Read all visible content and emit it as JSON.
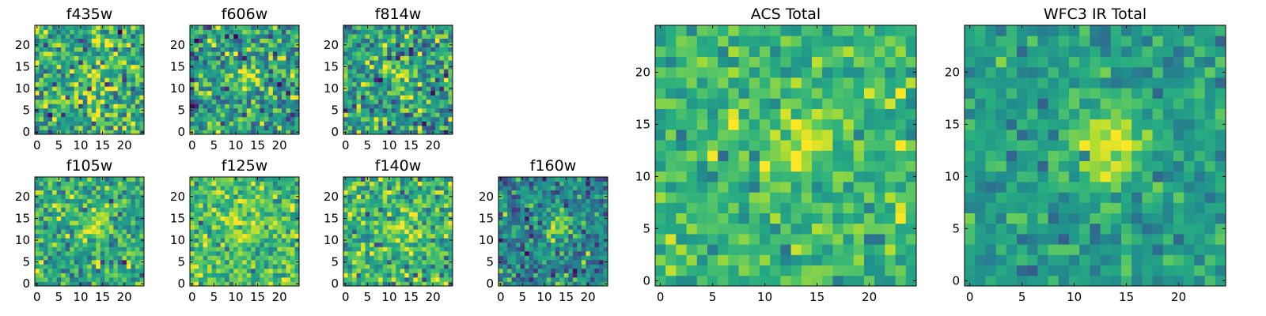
{
  "chart_data": [
    {
      "type": "heatmap",
      "title": "f435w",
      "xticks": [
        0,
        5,
        10,
        15,
        20
      ],
      "yticks": [
        0,
        5,
        10,
        15,
        20
      ],
      "xlim": [
        -0.5,
        24.5
      ],
      "ylim": [
        -0.5,
        24.5
      ],
      "grid": 25,
      "colormap": "viridis",
      "peak": [
        12,
        13
      ],
      "blob_width": 3.0,
      "blob_strength": 0.12,
      "noise_mean": 0.62,
      "noise_sd": 0.2,
      "seed": 11
    },
    {
      "type": "heatmap",
      "title": "f606w",
      "xticks": [
        0,
        5,
        10,
        15,
        20
      ],
      "yticks": [
        0,
        5,
        10,
        15,
        20
      ],
      "xlim": [
        -0.5,
        24.5
      ],
      "ylim": [
        -0.5,
        24.5
      ],
      "grid": 25,
      "colormap": "viridis",
      "peak": [
        13,
        13
      ],
      "blob_width": 1.6,
      "blob_strength": 0.35,
      "noise_mean": 0.55,
      "noise_sd": 0.2,
      "seed": 23
    },
    {
      "type": "heatmap",
      "title": "f814w",
      "xticks": [
        0,
        5,
        10,
        15,
        20
      ],
      "yticks": [
        0,
        5,
        10,
        15,
        20
      ],
      "xlim": [
        -0.5,
        24.5
      ],
      "ylim": [
        -0.5,
        24.5
      ],
      "grid": 25,
      "colormap": "viridis",
      "peak": [
        13,
        13
      ],
      "blob_width": 1.6,
      "blob_strength": 0.35,
      "noise_mean": 0.58,
      "noise_sd": 0.2,
      "seed": 37
    },
    {
      "type": "heatmap",
      "title": "f105w",
      "xticks": [
        0,
        5,
        10,
        15,
        20
      ],
      "yticks": [
        0,
        5,
        10,
        15,
        20
      ],
      "xlim": [
        -0.5,
        24.5
      ],
      "ylim": [
        -0.5,
        24.5
      ],
      "grid": 25,
      "colormap": "viridis",
      "peak": [
        13,
        14
      ],
      "blob_width": 2.5,
      "blob_strength": 0.3,
      "noise_mean": 0.62,
      "noise_sd": 0.16,
      "seed": 41
    },
    {
      "type": "heatmap",
      "title": "f125w",
      "xticks": [
        0,
        5,
        10,
        15,
        20
      ],
      "yticks": [
        0,
        5,
        10,
        15,
        20
      ],
      "xlim": [
        -0.5,
        24.5
      ],
      "ylim": [
        -0.5,
        24.5
      ],
      "grid": 25,
      "colormap": "viridis",
      "peak": [
        12,
        12
      ],
      "blob_width": 2.5,
      "blob_strength": 0.2,
      "noise_mean": 0.7,
      "noise_sd": 0.14,
      "seed": 53
    },
    {
      "type": "heatmap",
      "title": "f140w",
      "xticks": [
        0,
        5,
        10,
        15,
        20
      ],
      "yticks": [
        0,
        5,
        10,
        15,
        20
      ],
      "xlim": [
        -0.5,
        24.5
      ],
      "ylim": [
        -0.5,
        24.5
      ],
      "grid": 25,
      "colormap": "viridis",
      "peak": [
        13,
        12
      ],
      "blob_width": 2.5,
      "blob_strength": 0.22,
      "noise_mean": 0.66,
      "noise_sd": 0.17,
      "seed": 67
    },
    {
      "type": "heatmap",
      "title": "f160w",
      "xticks": [
        0,
        5,
        10,
        15,
        20
      ],
      "yticks": [
        0,
        5,
        10,
        15,
        20
      ],
      "xlim": [
        -0.5,
        24.5
      ],
      "ylim": [
        -0.5,
        24.5
      ],
      "grid": 25,
      "colormap": "viridis",
      "peak": [
        13,
        13
      ],
      "blob_width": 2.2,
      "blob_strength": 0.45,
      "noise_mean": 0.45,
      "noise_sd": 0.16,
      "seed": 79
    },
    {
      "type": "heatmap",
      "title": "ACS Total",
      "xticks": [
        0,
        5,
        10,
        15,
        20
      ],
      "yticks": [
        0,
        5,
        10,
        15,
        20
      ],
      "xlim": [
        -0.5,
        24.5
      ],
      "ylim": [
        -0.5,
        24.5
      ],
      "grid": 25,
      "colormap": "viridis",
      "peak": [
        13,
        13
      ],
      "blob_width": 2.2,
      "blob_strength": 0.3,
      "noise_mean": 0.66,
      "noise_sd": 0.12,
      "seed": 97
    },
    {
      "type": "heatmap",
      "title": "WFC3 IR Total",
      "xticks": [
        0,
        5,
        10,
        15,
        20
      ],
      "yticks": [
        0,
        5,
        10,
        15,
        20
      ],
      "xlim": [
        -0.5,
        24.5
      ],
      "ylim": [
        -0.5,
        24.5
      ],
      "grid": 25,
      "colormap": "viridis",
      "peak": [
        13,
        13
      ],
      "blob_width": 2.5,
      "blob_strength": 0.4,
      "noise_mean": 0.56,
      "noise_sd": 0.1,
      "seed": 113
    }
  ]
}
